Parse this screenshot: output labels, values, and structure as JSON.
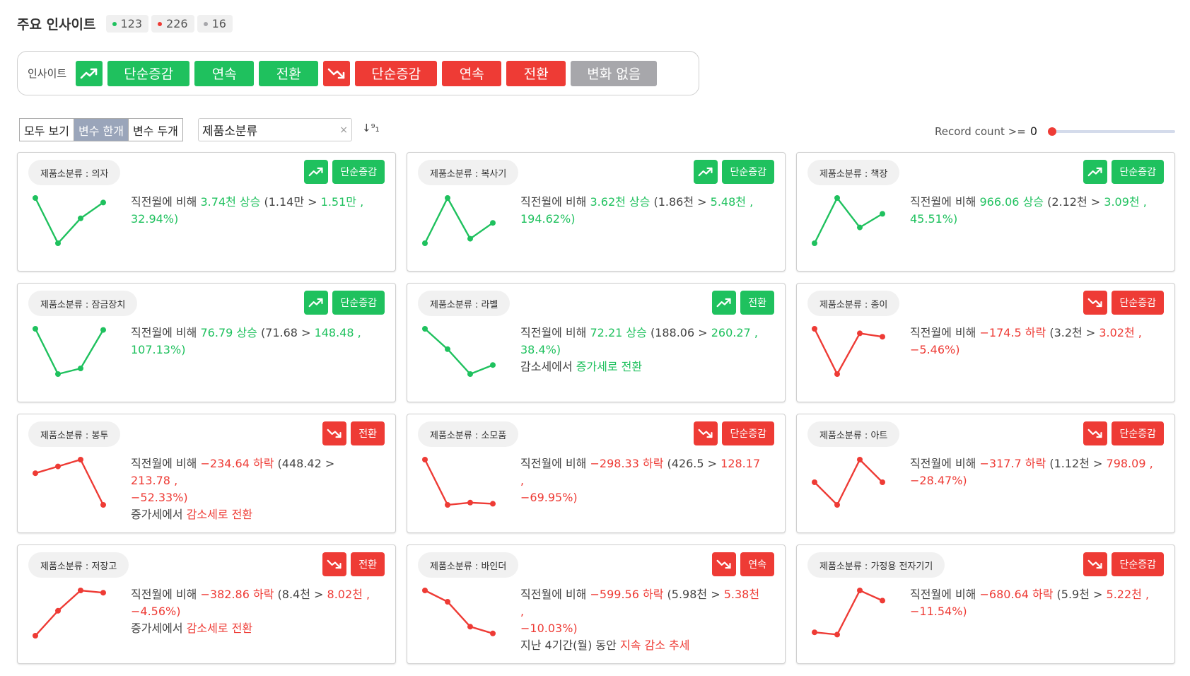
{
  "header": {
    "title": "주요 인사이트",
    "counts": [
      {
        "value": "123",
        "color": "#1fc15e"
      },
      {
        "value": "226",
        "color": "#ee3b35"
      },
      {
        "value": "16",
        "color": "#a7a7ab"
      }
    ]
  },
  "filter": {
    "label": "인사이트",
    "up_icon": "trend-up-icon",
    "down_icon": "trend-down-icon",
    "up_buttons": [
      "단순증감",
      "연속",
      "전환"
    ],
    "down_buttons": [
      "단순증감",
      "연속",
      "전환"
    ],
    "nochange": "변화 없음"
  },
  "view_tabs": [
    "모두 보기",
    "변수 한개",
    "변수 두개"
  ],
  "active_tab": "변수 한개",
  "search": {
    "value": "제품소분류",
    "clear": "×",
    "sort_icon": "↓⁹₁"
  },
  "record": {
    "label": "Record count >=",
    "value": "0"
  },
  "colors": {
    "up": "#1fc15e",
    "down": "#ee3b35",
    "neutral": "#a7a7ab"
  },
  "cards": [
    {
      "tag": "제품소분류 : 의자",
      "dir": "up",
      "badge": "단순증감",
      "points": [
        [
          0,
          0
        ],
        [
          1,
          2
        ],
        [
          2,
          0.9
        ],
        [
          3,
          0.2
        ]
      ],
      "lead": "직전월에 비해 ",
      "change": "3.74천 상승",
      "from": "(1.14만",
      "to": "1.51만 ,",
      "pct": "32.94%)",
      "pre": "",
      "hl": ""
    },
    {
      "tag": "제품소분류 : 복사기",
      "dir": "up",
      "badge": "단순증감",
      "points": [
        [
          0,
          2
        ],
        [
          1,
          0
        ],
        [
          2,
          1.8
        ],
        [
          3,
          1.1
        ]
      ],
      "lead": "직전월에 비해 ",
      "change": "3.62천 상승",
      "from": "(1.86천",
      "to": "5.48천 ,",
      "pct": "194.62%)",
      "pre": "",
      "hl": ""
    },
    {
      "tag": "제품소분류 : 책장",
      "dir": "up",
      "badge": "단순증감",
      "points": [
        [
          0,
          2
        ],
        [
          1,
          0
        ],
        [
          2,
          1.3
        ],
        [
          3,
          0.7
        ]
      ],
      "lead": "직전월에 비해 ",
      "change": "966.06 상승",
      "from": "(2.12천",
      "to": "3.09천 ,",
      "pct": "45.51%)",
      "pre": "",
      "hl": ""
    },
    {
      "tag": "제품소분류 : 잠금장치",
      "dir": "up",
      "badge": "단순증감",
      "points": [
        [
          0,
          0
        ],
        [
          1,
          2
        ],
        [
          2,
          1.75
        ],
        [
          3,
          0.05
        ]
      ],
      "lead": "직전월에 비해 ",
      "change": "76.79 상승",
      "from": "(71.68",
      "to": "148.48 ,",
      "pct": "107.13%)",
      "pre": "",
      "hl": ""
    },
    {
      "tag": "제품소분류 : 라벨",
      "dir": "up",
      "badge": "전환",
      "points": [
        [
          0,
          0
        ],
        [
          1,
          0.9
        ],
        [
          2,
          2
        ],
        [
          3,
          1.6
        ]
      ],
      "lead": "직전월에 비해 ",
      "change": "72.21 상승",
      "from": "(188.06",
      "to": "260.27 ,",
      "pct": "38.4%)",
      "pre": "감소세에서 ",
      "hl": "증가세로 전환"
    },
    {
      "tag": "제품소분류 : 종이",
      "dir": "down",
      "badge": "단순증감",
      "points": [
        [
          0,
          0
        ],
        [
          1,
          2
        ],
        [
          2,
          0.2
        ],
        [
          3,
          0.35
        ]
      ],
      "lead": "직전월에 비해 ",
      "change": "−174.5 하락",
      "from": "(3.2천",
      "to": "3.02천 ,",
      "pct": "−5.46%)",
      "pre": "",
      "hl": ""
    },
    {
      "tag": "제품소분류 : 봉투",
      "dir": "down",
      "badge": "전환",
      "points": [
        [
          0,
          0.6
        ],
        [
          1,
          0.3
        ],
        [
          2,
          0
        ],
        [
          3,
          2
        ]
      ],
      "lead": "직전월에 비해 ",
      "change": "−234.64 하락",
      "from": "(448.42",
      "to": "213.78 ,",
      "pct": "−52.33%)",
      "pre": "증가세에서 ",
      "hl": "감소세로 전환"
    },
    {
      "tag": "제품소분류 : 소모품",
      "dir": "down",
      "badge": "단순증감",
      "points": [
        [
          0,
          0
        ],
        [
          1,
          2
        ],
        [
          2,
          1.9
        ],
        [
          3,
          1.95
        ]
      ],
      "lead": "직전월에 비해 ",
      "change": "−298.33 하락",
      "from": "(426.5",
      "to": "128.17 ,",
      "pct": "−69.95%)",
      "pre": "",
      "hl": ""
    },
    {
      "tag": "제품소분류 : 아트",
      "dir": "down",
      "badge": "단순증감",
      "points": [
        [
          0,
          1
        ],
        [
          1,
          2
        ],
        [
          2,
          0
        ],
        [
          3,
          1
        ]
      ],
      "lead": "직전월에 비해 ",
      "change": "−317.7 하락",
      "from": "(1.12천",
      "to": "798.09 ,",
      "pct": "−28.47%)",
      "pre": "",
      "hl": ""
    },
    {
      "tag": "제품소분류 : 저장고",
      "dir": "down",
      "badge": "전환",
      "points": [
        [
          0,
          2
        ],
        [
          1,
          0.9
        ],
        [
          2,
          0
        ],
        [
          3,
          0.1
        ]
      ],
      "lead": "직전월에 비해 ",
      "change": "−382.86 하락",
      "from": "(8.4천",
      "to": "8.02천 ,",
      "pct": "−4.56%)",
      "pre": "증가세에서 ",
      "hl": "감소세로 전환"
    },
    {
      "tag": "제품소분류 : 바인더",
      "dir": "down",
      "badge": "연속",
      "points": [
        [
          0,
          0
        ],
        [
          1,
          0.5
        ],
        [
          2,
          1.6
        ],
        [
          3,
          1.9
        ]
      ],
      "lead": "직전월에 비해 ",
      "change": "−599.56 하락",
      "from": "(5.98천",
      "to": "5.38천 ,",
      "pct": "−10.03%)",
      "pre": "지난 4기간(월) 동안 ",
      "hl": "지속 감소 추세"
    },
    {
      "tag": "제품소분류 : 가정용 전자기기",
      "dir": "down",
      "badge": "단순증감",
      "points": [
        [
          0,
          1.85
        ],
        [
          1,
          1.95
        ],
        [
          2,
          0
        ],
        [
          3,
          0.45
        ]
      ],
      "lead": "직전월에 비해 ",
      "change": "−680.64 하락",
      "from": "(5.9천",
      "to": "5.22천 ,",
      "pct": "−11.54%)",
      "pre": "",
      "hl": ""
    }
  ]
}
